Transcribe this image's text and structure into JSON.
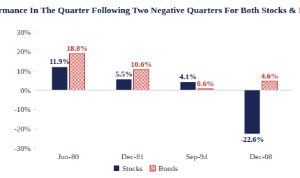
{
  "chart_data": {
    "type": "bar",
    "title": "Performance In The Quarter Following Two Negative Quarters For Both Stocks & Bonds",
    "categories": [
      "Jun-80",
      "Dec-81",
      "Sep-94",
      "Dec-08"
    ],
    "series": [
      {
        "name": "Stocks",
        "color": "#1b2654",
        "values": [
          11.9,
          5.5,
          4.1,
          -22.6
        ],
        "value_labels": [
          "11.9%",
          "5.5%",
          "4.1%",
          "-22.6%"
        ]
      },
      {
        "name": "Bonds",
        "color": "#c0312b",
        "values": [
          18.8,
          10.6,
          0.6,
          4.6
        ],
        "value_labels": [
          "18.8%",
          "10.6%",
          "0.6%",
          "4.6%"
        ]
      }
    ],
    "ylim": [
      -30,
      30
    ],
    "yticks": [
      {
        "value": -30,
        "label": "-30%"
      },
      {
        "value": -20,
        "label": "-20%"
      },
      {
        "value": -10,
        "label": "-10%"
      },
      {
        "value": 0,
        "label": "0%"
      },
      {
        "value": 10,
        "label": "10%"
      },
      {
        "value": 20,
        "label": "20%"
      },
      {
        "value": 30,
        "label": "30%"
      }
    ],
    "grid": false,
    "legend": "bottom",
    "data_labels": true
  }
}
